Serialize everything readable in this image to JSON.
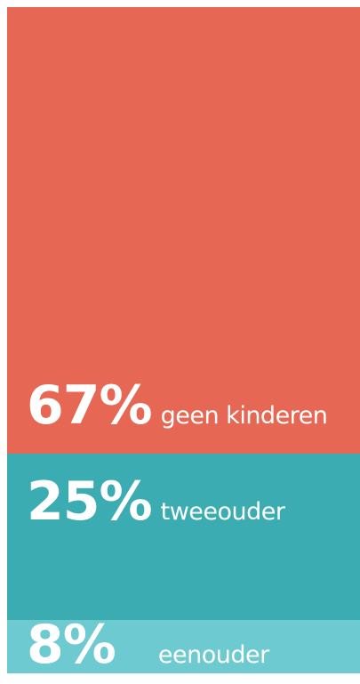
{
  "chart_data": {
    "type": "bar",
    "categories": [
      "geen kinderen",
      "tweeouder",
      "eenouder"
    ],
    "values": [
      67,
      25,
      8
    ],
    "value_labels": [
      "67%",
      "25%",
      "8%"
    ],
    "colors": [
      "#e66753",
      "#3aacb2",
      "#6ccad0"
    ],
    "title": "",
    "xlabel": "",
    "ylabel": ""
  }
}
